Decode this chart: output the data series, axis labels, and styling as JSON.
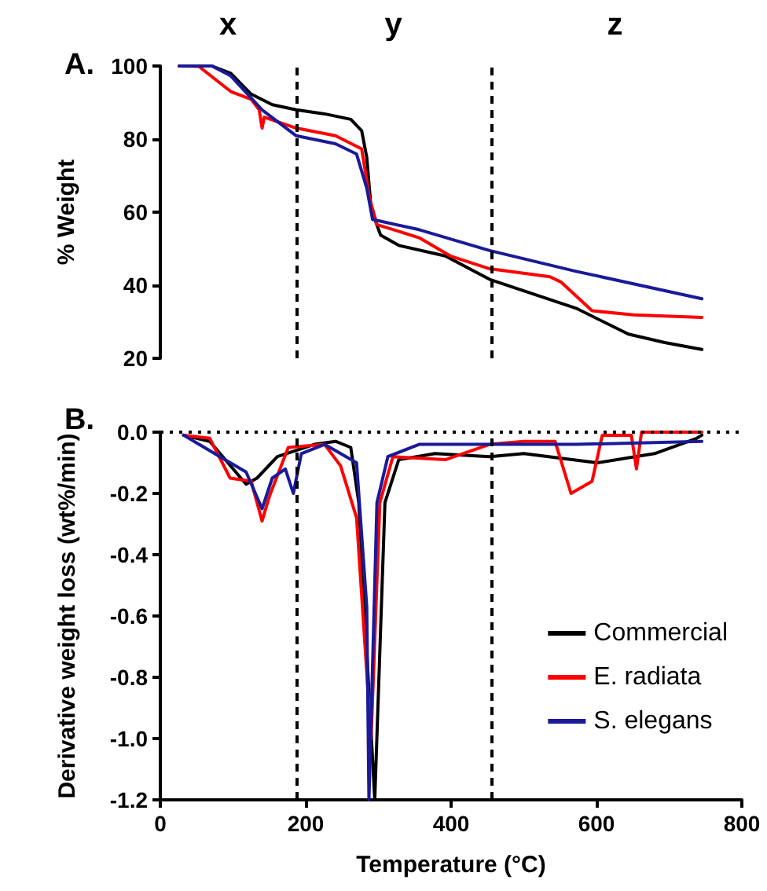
{
  "chart_data": [
    {
      "type": "line",
      "title": "A.",
      "ylabel": "% Weight",
      "annotations": [
        "x",
        "y",
        "z"
      ],
      "xlim": [
        0,
        800
      ],
      "ylim": [
        20,
        100
      ],
      "yticks": [
        20,
        40,
        60,
        80,
        100
      ],
      "tick_labels": "y",
      "grid": false,
      "legend": false,
      "marker": "none",
      "line_style": "solid",
      "ref_lines": [
        {
          "axis": "x",
          "value": 188,
          "color": "#000000",
          "line_style": "dashed"
        },
        {
          "axis": "x",
          "value": 455,
          "color": "#000000",
          "line_style": "dashed"
        }
      ],
      "series": [
        {
          "color": "#000000",
          "x": [
            26,
            71,
            97,
            125,
            154,
            187,
            226,
            262,
            277,
            284,
            290,
            303,
            328,
            392,
            453,
            572,
            644,
            694,
            745
          ],
          "values": [
            100,
            100,
            98,
            92.3,
            89.4,
            88,
            86.9,
            85.4,
            82.3,
            75,
            60.9,
            53.7,
            50.9,
            48,
            41.6,
            33.7,
            26.6,
            24.3,
            22.4
          ]
        },
        {
          "color": "#ff0000",
          "x": [
            26,
            53,
            97,
            125,
            136,
            140,
            143,
            187,
            241,
            277,
            288,
            298,
            356,
            399,
            453,
            536,
            551,
            594,
            651,
            745
          ],
          "values": [
            100,
            99.9,
            93,
            90.9,
            88,
            83,
            86,
            83,
            80.9,
            77.3,
            63.7,
            56.6,
            53,
            48,
            44.5,
            42.3,
            40.9,
            33,
            31.9,
            31.2
          ]
        },
        {
          "color": "#1a1a99",
          "x": [
            26,
            71,
            97,
            140,
            187,
            241,
            270,
            284,
            292,
            356,
            453,
            572,
            745
          ],
          "values": [
            100,
            100,
            97.3,
            88,
            80.9,
            78.7,
            75.9,
            66.6,
            58,
            55.2,
            49.5,
            43.8,
            36.3
          ]
        }
      ]
    },
    {
      "type": "line",
      "title": "B.",
      "xlabel": "Temperature (°C)",
      "ylabel": "Derivative weight loss (wt%/min)",
      "xlim": [
        0,
        800
      ],
      "xticks": [
        0,
        200,
        400,
        600,
        800
      ],
      "ylim": [
        -1.2,
        0
      ],
      "yticks": [
        -1.2,
        {
          "value": -1.0,
          "label": "-1.0"
        },
        -0.8,
        -0.6,
        -0.4,
        -0.2,
        {
          "value": 0,
          "label": "0.0"
        }
      ],
      "grid": false,
      "legend": "bottom right",
      "marker": "none",
      "line_style": "solid",
      "ref_lines": [
        {
          "axis": "x",
          "value": 188,
          "color": "#000000",
          "line_style": "dashed"
        },
        {
          "axis": "x",
          "value": 455,
          "color": "#000000",
          "line_style": "dashed"
        },
        {
          "axis": "y",
          "value": 0,
          "color": "#000000",
          "line_style": "dotted"
        }
      ],
      "series": [
        {
          "name": "Commercial",
          "color": "#000000",
          "x": [
            32,
            68,
            118,
            133,
            161,
            212,
            241,
            262,
            273,
            295,
            309,
            328,
            378,
            453,
            500,
            601,
            680,
            738,
            745
          ],
          "values": [
            -0.01,
            -0.03,
            -0.17,
            -0.15,
            -0.08,
            -0.04,
            -0.03,
            -0.05,
            -0.23,
            -1.2,
            -0.23,
            -0.09,
            -0.07,
            -0.08,
            -0.07,
            -0.1,
            -0.07,
            -0.02,
            -0.01
          ]
        },
        {
          "name": "E. radiata",
          "color": "#ff0000",
          "x": [
            32,
            68,
            96,
            125,
            140,
            150,
            176,
            226,
            248,
            270,
            290,
            302,
            320,
            392,
            453,
            500,
            543,
            565,
            594,
            608,
            648,
            655,
            662,
            745
          ],
          "values": [
            -0.01,
            -0.02,
            -0.15,
            -0.16,
            -0.29,
            -0.21,
            -0.05,
            -0.04,
            -0.11,
            -0.28,
            -1.0,
            -0.23,
            -0.08,
            -0.09,
            -0.04,
            -0.03,
            -0.03,
            -0.2,
            -0.16,
            -0.01,
            -0.01,
            -0.12,
            0,
            0
          ]
        },
        {
          "name": "S. elegans",
          "color": "#1a1a99",
          "x": [
            32,
            82,
            118,
            140,
            154,
            172,
            183,
            194,
            226,
            270,
            284,
            287,
            298,
            313,
            356,
            453,
            572,
            745
          ],
          "values": [
            -0.01,
            -0.08,
            -0.13,
            -0.25,
            -0.15,
            -0.12,
            -0.2,
            -0.07,
            -0.04,
            -0.1,
            -0.57,
            -1.2,
            -0.23,
            -0.08,
            -0.04,
            -0.04,
            -0.04,
            -0.03
          ]
        }
      ]
    }
  ]
}
